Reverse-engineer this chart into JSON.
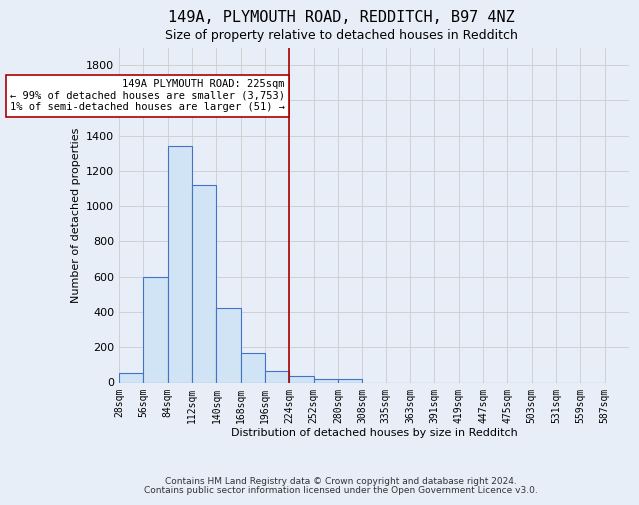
{
  "title": "149A, PLYMOUTH ROAD, REDDITCH, B97 4NZ",
  "subtitle": "Size of property relative to detached houses in Redditch",
  "xlabel": "Distribution of detached houses by size in Redditch",
  "ylabel": "Number of detached properties",
  "bins_left": [
    28,
    56,
    84,
    112,
    140,
    168,
    196,
    224,
    252,
    280,
    308,
    335,
    363,
    391,
    419,
    447,
    475,
    503,
    531,
    559
  ],
  "bin_width": 28,
  "heights": [
    55,
    600,
    1340,
    1120,
    420,
    170,
    65,
    35,
    20,
    20,
    0,
    0,
    0,
    0,
    0,
    0,
    0,
    0,
    0,
    0
  ],
  "bar_facecolor": "#d0e4f5",
  "bar_edgecolor": "#4472c4",
  "bar_linewidth": 0.8,
  "grid_color": "#cccccc",
  "bg_color": "#e8eef8",
  "vline_x": 224,
  "vline_color": "#aa0000",
  "vline_lw": 1.2,
  "annotation_text": "149A PLYMOUTH ROAD: 225sqm\n← 99% of detached houses are smaller (3,753)\n1% of semi-detached houses are larger (51) →",
  "annotation_box_edgecolor": "#aa0000",
  "annotation_box_facecolor": "white",
  "xlim_left": 28,
  "xlim_right": 615,
  "ylim_top": 1900,
  "tick_labels": [
    "28sqm",
    "56sqm",
    "84sqm",
    "112sqm",
    "140sqm",
    "168sqm",
    "196sqm",
    "224sqm",
    "252sqm",
    "280sqm",
    "308sqm",
    "335sqm",
    "363sqm",
    "391sqm",
    "419sqm",
    "447sqm",
    "475sqm",
    "503sqm",
    "531sqm",
    "559sqm",
    "587sqm"
  ],
  "tick_positions": [
    28,
    56,
    84,
    112,
    140,
    168,
    196,
    224,
    252,
    280,
    308,
    335,
    363,
    391,
    419,
    447,
    475,
    503,
    531,
    559,
    587
  ],
  "yticks": [
    0,
    200,
    400,
    600,
    800,
    1000,
    1200,
    1400,
    1600,
    1800
  ],
  "footer_line1": "Contains HM Land Registry data © Crown copyright and database right 2024.",
  "footer_line2": "Contains public sector information licensed under the Open Government Licence v3.0.",
  "title_fontsize": 11,
  "subtitle_fontsize": 9,
  "axis_label_fontsize": 8,
  "tick_fontsize": 7,
  "ytick_fontsize": 8,
  "footer_fontsize": 6.5,
  "annot_fontsize": 7.5
}
